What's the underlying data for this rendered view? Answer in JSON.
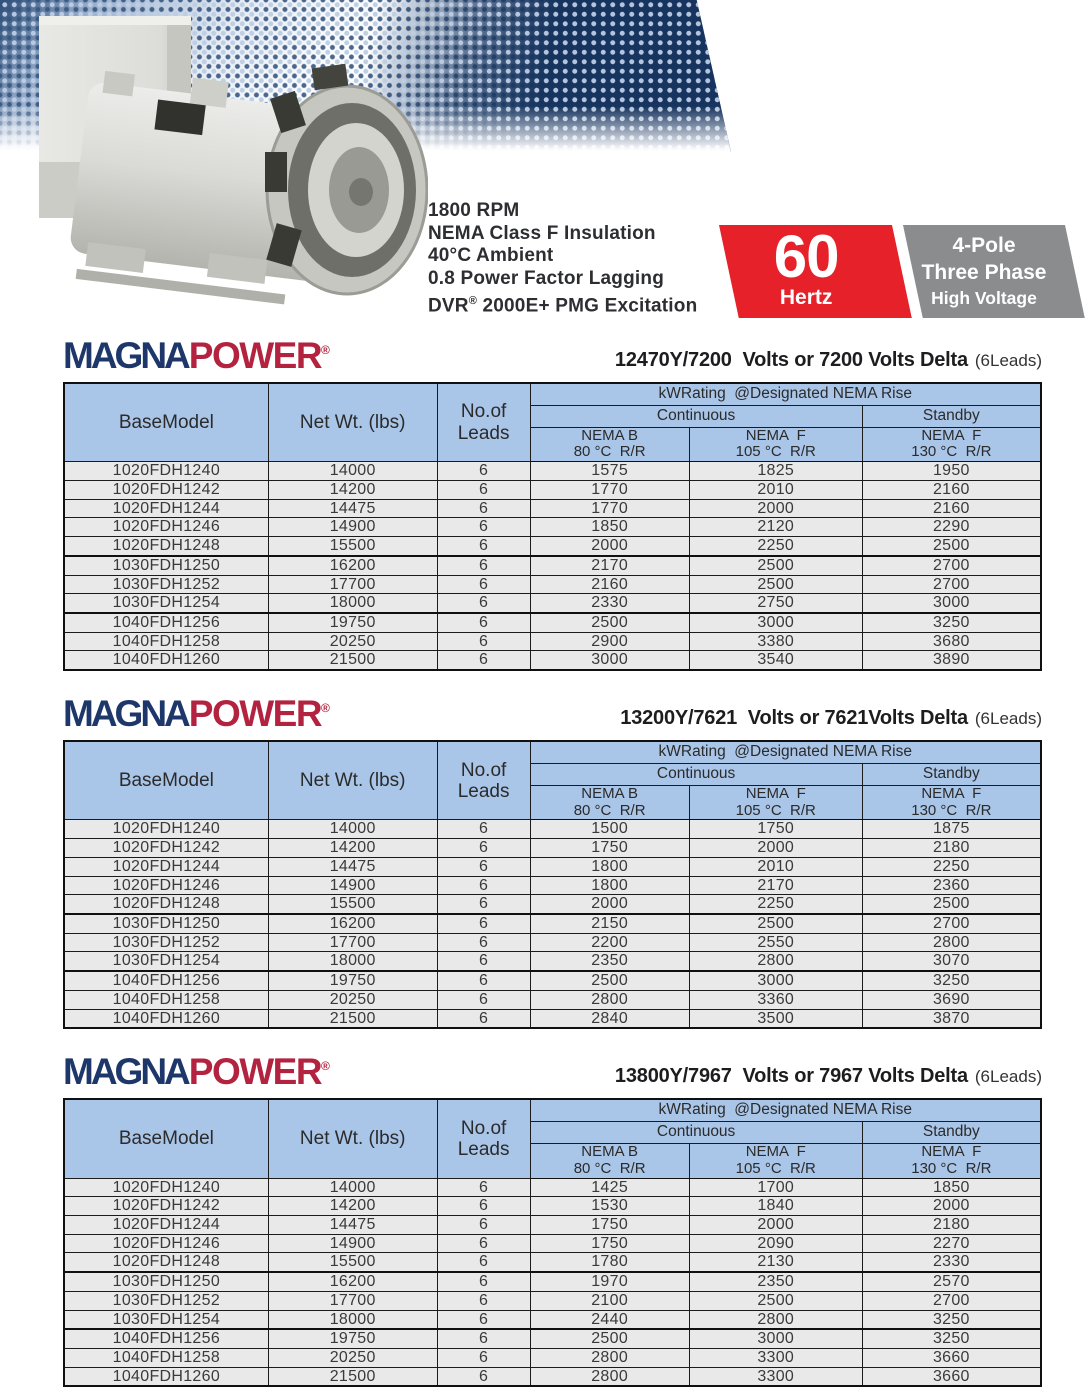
{
  "hero": {
    "specs": [
      "1800 RPM",
      "NEMA Class F Insulation",
      "40°C Ambient",
      "0.8 Power Factor Lagging"
    ],
    "dvr": {
      "pre": "DVR",
      "reg": "®",
      "post": " 2000E+ PMG Excitation"
    },
    "hertz_badge": {
      "value": "60",
      "unit": "Hertz"
    },
    "pole_badge": {
      "line1": "4-Pole",
      "line2": "Three Phase",
      "line3": "High Voltage"
    }
  },
  "logo": {
    "part1": "MAGNA",
    "part2": "POWER",
    "reg": "®"
  },
  "columns": {
    "base_model": "BaseModel",
    "net_wt": "Net Wt. (lbs)",
    "leads": "No.of\nLeads",
    "kw_rating": "kWRating  @Designated NEMA Rise",
    "continuous": "Continuous",
    "standby": "Standby",
    "nema_b": "NEMA B\n80 °C  R/R",
    "nema_f_cont": "NEMA  F\n105 °C  R/R",
    "nema_f_stby": "NEMA  F\n130 °C  R/R"
  },
  "model_rows": [
    {
      "model": "1020FDH1240",
      "net_wt": "14000",
      "leads": "6"
    },
    {
      "model": "1020FDH1242",
      "net_wt": "14200",
      "leads": "6"
    },
    {
      "model": "1020FDH1244",
      "net_wt": "14475",
      "leads": "6"
    },
    {
      "model": "1020FDH1246",
      "net_wt": "14900",
      "leads": "6"
    },
    {
      "model": "1020FDH1248",
      "net_wt": "15500",
      "leads": "6"
    },
    {
      "model": "1030FDH1250",
      "net_wt": "16200",
      "leads": "6"
    },
    {
      "model": "1030FDH1252",
      "net_wt": "17700",
      "leads": "6"
    },
    {
      "model": "1030FDH1254",
      "net_wt": "18000",
      "leads": "6"
    },
    {
      "model": "1040FDH1256",
      "net_wt": "19750",
      "leads": "6"
    },
    {
      "model": "1040FDH1258",
      "net_wt": "20250",
      "leads": "6"
    },
    {
      "model": "1040FDH1260",
      "net_wt": "21500",
      "leads": "6"
    }
  ],
  "group_ends": [
    4,
    7
  ],
  "tables": [
    {
      "title": "12470Y/7200  Volts or 7200 Volts Delta",
      "note": "(6Leads)",
      "kw": [
        [
          "1575",
          "1825",
          "1950"
        ],
        [
          "1770",
          "2010",
          "2160"
        ],
        [
          "1770",
          "2000",
          "2160"
        ],
        [
          "1850",
          "2120",
          "2290"
        ],
        [
          "2000",
          "2250",
          "2500"
        ],
        [
          "2170",
          "2500",
          "2700"
        ],
        [
          "2160",
          "2500",
          "2700"
        ],
        [
          "2330",
          "2750",
          "3000"
        ],
        [
          "2500",
          "3000",
          "3250"
        ],
        [
          "2900",
          "3380",
          "3680"
        ],
        [
          "3000",
          "3540",
          "3890"
        ]
      ]
    },
    {
      "title": "13200Y/7621  Volts or 7621Volts Delta",
      "note": "(6Leads)",
      "kw": [
        [
          "1500",
          "1750",
          "1875"
        ],
        [
          "1750",
          "2000",
          "2180"
        ],
        [
          "1800",
          "2010",
          "2250"
        ],
        [
          "1800",
          "2170",
          "2360"
        ],
        [
          "2000",
          "2250",
          "2500"
        ],
        [
          "2150",
          "2500",
          "2700"
        ],
        [
          "2200",
          "2550",
          "2800"
        ],
        [
          "2350",
          "2800",
          "3070"
        ],
        [
          "2500",
          "3000",
          "3250"
        ],
        [
          "2800",
          "3360",
          "3690"
        ],
        [
          "2840",
          "3500",
          "3870"
        ]
      ]
    },
    {
      "title": "13800Y/7967  Volts or 7967 Volts Delta",
      "note": "(6Leads)",
      "kw": [
        [
          "1425",
          "1700",
          "1850"
        ],
        [
          "1530",
          "1840",
          "2000"
        ],
        [
          "1750",
          "2000",
          "2180"
        ],
        [
          "1750",
          "2090",
          "2270"
        ],
        [
          "1780",
          "2130",
          "2330"
        ],
        [
          "1970",
          "2350",
          "2570"
        ],
        [
          "2100",
          "2500",
          "2700"
        ],
        [
          "2440",
          "2800",
          "3250"
        ],
        [
          "2500",
          "3000",
          "3250"
        ],
        [
          "2800",
          "3300",
          "3660"
        ],
        [
          "2800",
          "3300",
          "3660"
        ]
      ]
    }
  ],
  "colors": {
    "logo_navy": "#1e376b",
    "logo_red": "#b32340",
    "badge_red": "#e62129",
    "badge_gray": "#8a8c8e",
    "header_blue": "#a9c5e8",
    "banner_navy": "#17345e"
  }
}
